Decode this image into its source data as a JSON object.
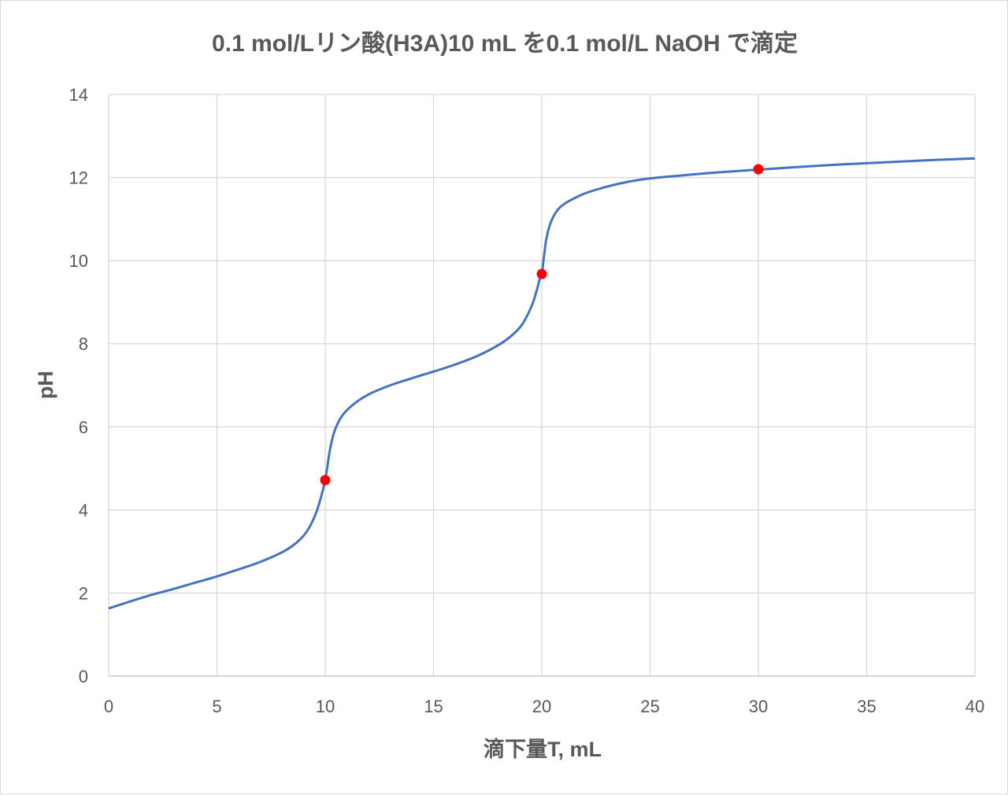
{
  "chart_data": {
    "type": "line",
    "title": "0.1 mol/Lリン酸(H3A)10 mL を0.1 mol/L NaOH で滴定",
    "xlabel": "滴下量T, mL",
    "ylabel": "pH",
    "xlim": [
      0,
      40
    ],
    "ylim": [
      0,
      14
    ],
    "x_ticks": [
      0,
      5,
      10,
      15,
      20,
      25,
      30,
      35,
      40
    ],
    "y_ticks": [
      0,
      2,
      4,
      6,
      8,
      10,
      12,
      14
    ],
    "grid": true,
    "legend": "none",
    "series": [
      {
        "type": "line",
        "color": "#4472c4",
        "x": [
          0,
          1,
          2,
          3,
          4,
          5,
          6,
          7,
          8,
          8.5,
          9,
          9.3,
          9.6,
          9.8,
          9.9,
          10,
          10.1,
          10.2,
          10.4,
          10.7,
          11,
          11.5,
          12,
          13,
          14,
          15,
          16,
          17,
          18,
          18.5,
          19,
          19.3,
          19.6,
          19.8,
          19.9,
          20,
          20.1,
          20.2,
          20.4,
          20.7,
          21,
          21.5,
          22,
          23,
          24,
          25,
          26,
          28,
          30,
          32,
          34,
          36,
          38,
          40
        ],
        "y": [
          1.63,
          1.8,
          1.96,
          2.1,
          2.25,
          2.4,
          2.57,
          2.75,
          2.98,
          3.14,
          3.38,
          3.61,
          3.96,
          4.3,
          4.5,
          4.72,
          5.05,
          5.4,
          5.85,
          6.2,
          6.4,
          6.62,
          6.78,
          7.0,
          7.17,
          7.33,
          7.5,
          7.7,
          7.97,
          8.15,
          8.4,
          8.65,
          9.0,
          9.35,
          9.55,
          9.68,
          10.1,
          10.5,
          10.9,
          11.2,
          11.35,
          11.5,
          11.62,
          11.78,
          11.9,
          11.98,
          12.03,
          12.12,
          12.19,
          12.26,
          12.32,
          12.37,
          12.42,
          12.46
        ]
      },
      {
        "type": "scatter",
        "color": "#ff0000",
        "x": [
          10,
          20,
          30
        ],
        "y": [
          4.72,
          9.68,
          12.2
        ]
      }
    ]
  }
}
